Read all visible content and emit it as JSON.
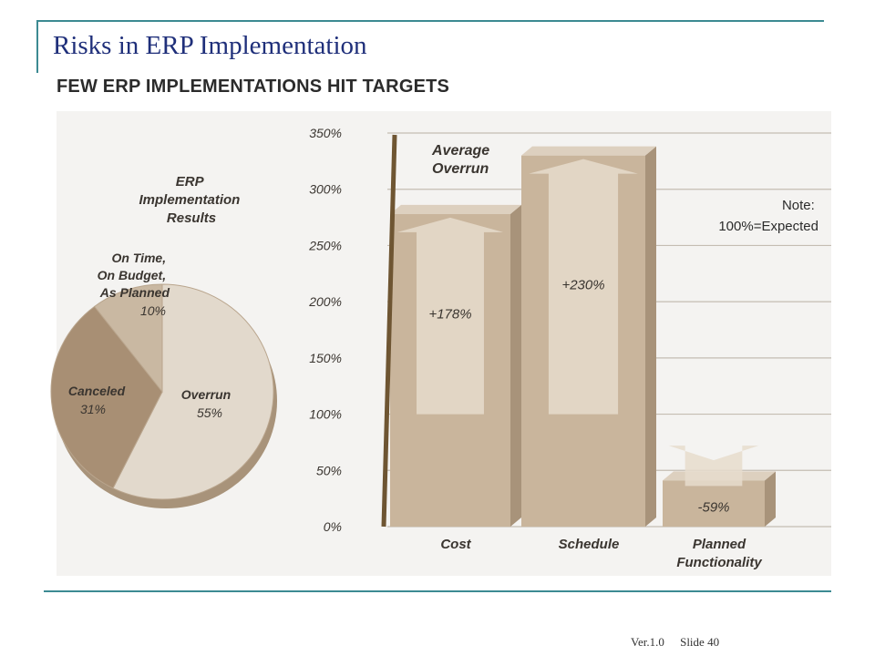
{
  "slide": {
    "title": "Risks in ERP Implementation",
    "footer_version": "Ver.1.0",
    "footer_slide": "Slide 40"
  },
  "colors": {
    "accent_rule": "#3c8a92",
    "title_text": "#1f2f7a",
    "chart_background": "#f4f3f1",
    "bar_fill": "#c9b59c",
    "bar_shadow": "#a8937a",
    "arrow_fill": "#e6dccd",
    "pie_overrun": "#e2d9cc",
    "pie_canceled": "#a88f74",
    "pie_ontime": "#c9b8a2"
  },
  "chart_data": [
    {
      "type": "pie",
      "title": "ERP Implementation Results",
      "slices": [
        {
          "label": "Overrun",
          "value": 55,
          "value_label": "55%"
        },
        {
          "label": "Canceled",
          "value": 31,
          "value_label": "31%"
        },
        {
          "label": "On Time, On Budget, As Planned",
          "value": 10,
          "value_label": "10%"
        }
      ]
    },
    {
      "type": "bar",
      "title": "FEW ERP IMPLEMENTATIONS HIT TARGETS",
      "categories": [
        "Cost",
        "Schedule",
        "Planned Functionality"
      ],
      "values": [
        278,
        330,
        41
      ],
      "change_labels": [
        "+178%",
        "+230%",
        "-59%"
      ],
      "baseline": 100,
      "ylim": [
        0,
        350
      ],
      "yticks": [
        "0%",
        "50%",
        "100%",
        "150%",
        "200%",
        "250%",
        "300%",
        "350%"
      ],
      "ytick_values": [
        0,
        50,
        100,
        150,
        200,
        250,
        300,
        350
      ],
      "annotation": "Average Overrun",
      "note_lines": [
        "Note:",
        "100%=Expected"
      ],
      "grid": true
    }
  ]
}
